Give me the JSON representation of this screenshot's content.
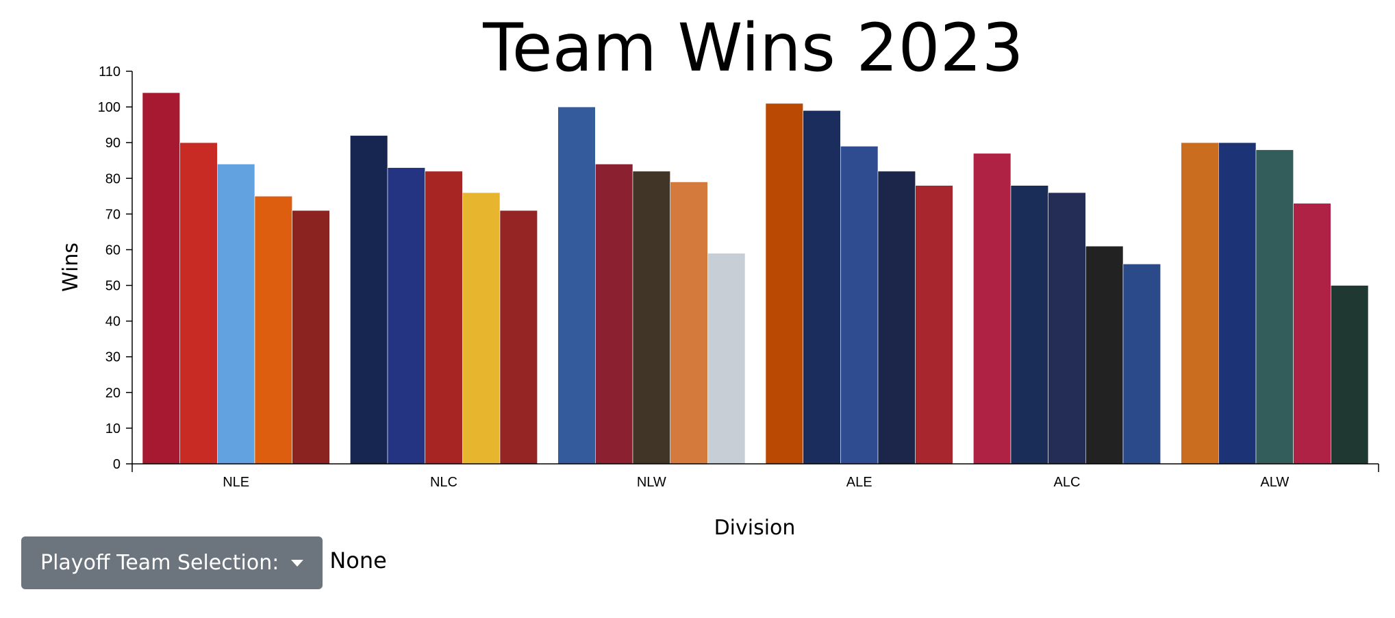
{
  "title": "Team Wins 2023",
  "controls": {
    "dropdown_label": "Playoff Team Selection:",
    "selected_value": "None"
  },
  "chart_data": {
    "type": "bar",
    "title": "Team Wins 2023",
    "xlabel": "Division",
    "ylabel": "Wins",
    "ylim": [
      0,
      110
    ],
    "yticks": [
      0,
      10,
      20,
      30,
      40,
      50,
      60,
      70,
      80,
      90,
      100,
      110
    ],
    "grid": false,
    "categories": [
      "NLE",
      "NLC",
      "NLW",
      "ALE",
      "ALC",
      "ALW"
    ],
    "groups": [
      {
        "division": "NLE",
        "bars": [
          {
            "value": 104,
            "color": "#A71930"
          },
          {
            "value": 90,
            "color": "#C82A24"
          },
          {
            "value": 84,
            "color": "#63A2E0"
          },
          {
            "value": 75,
            "color": "#DD5E0F"
          },
          {
            "value": 71,
            "color": "#8B2321"
          }
        ]
      },
      {
        "division": "NLC",
        "bars": [
          {
            "value": 92,
            "color": "#172551"
          },
          {
            "value": 83,
            "color": "#243482"
          },
          {
            "value": 82,
            "color": "#A72623"
          },
          {
            "value": 76,
            "color": "#E8B52E"
          },
          {
            "value": 71,
            "color": "#952525"
          }
        ]
      },
      {
        "division": "NLW",
        "bars": [
          {
            "value": 100,
            "color": "#345B9C"
          },
          {
            "value": 84,
            "color": "#8A2030"
          },
          {
            "value": 82,
            "color": "#413528"
          },
          {
            "value": 79,
            "color": "#D57A3D"
          },
          {
            "value": 59,
            "color": "#C8CED6"
          }
        ]
      },
      {
        "division": "ALE",
        "bars": [
          {
            "value": 101,
            "color": "#B94903"
          },
          {
            "value": 99,
            "color": "#1B2D5D"
          },
          {
            "value": 89,
            "color": "#2E4C8F"
          },
          {
            "value": 82,
            "color": "#1B264A"
          },
          {
            "value": 78,
            "color": "#A8272F"
          }
        ]
      },
      {
        "division": "ALC",
        "bars": [
          {
            "value": 87,
            "color": "#B02244"
          },
          {
            "value": 78,
            "color": "#1A2D58"
          },
          {
            "value": 76,
            "color": "#232D55"
          },
          {
            "value": 61,
            "color": "#232222"
          },
          {
            "value": 56,
            "color": "#2B4A8A"
          }
        ]
      },
      {
        "division": "ALW",
        "bars": [
          {
            "value": 90,
            "color": "#CB6D1F"
          },
          {
            "value": 90,
            "color": "#1C3475"
          },
          {
            "value": 88,
            "color": "#335D5B"
          },
          {
            "value": 73,
            "color": "#B02146"
          },
          {
            "value": 50,
            "color": "#1F3932"
          }
        ]
      }
    ]
  }
}
